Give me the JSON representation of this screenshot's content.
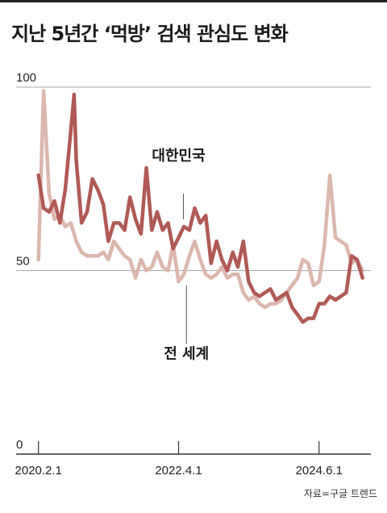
{
  "title": "지난 5년간 ‘먹방’ 검색 관심도 변화",
  "source": "자료=구글 트렌드",
  "chart_data": {
    "type": "line",
    "ylim": [
      0,
      100
    ],
    "y_ticks": [
      {
        "value": 100,
        "label": "100"
      },
      {
        "value": 50,
        "label": "50"
      },
      {
        "value": 0,
        "label": "0"
      }
    ],
    "x_domain": [
      "2019-09-28",
      "2025-03-20"
    ],
    "x_ticks": [
      {
        "date": "2020-02-01",
        "label": "2020.2.1"
      },
      {
        "date": "2022-04-01",
        "label": "2022.4.1"
      },
      {
        "date": "2024-06-01",
        "label": "2024.6.1"
      }
    ],
    "grid": true,
    "legend": "direct labels on the lines",
    "series": [
      {
        "name": "대한민국",
        "color": "#b05a55",
        "labeled_date": "2022-04-01",
        "label_value": 80,
        "points": [
          [
            "2020-02-01",
            76
          ],
          [
            "2020-03-01",
            67
          ],
          [
            "2020-04-01",
            66
          ],
          [
            "2020-05-01",
            69
          ],
          [
            "2020-06-01",
            63
          ],
          [
            "2020-07-01",
            72
          ],
          [
            "2020-08-01",
            88
          ],
          [
            "2020-08-20",
            98
          ],
          [
            "2020-09-01",
            80
          ],
          [
            "2020-10-01",
            63
          ],
          [
            "2020-11-01",
            66
          ],
          [
            "2020-12-01",
            75
          ],
          [
            "2021-01-01",
            72
          ],
          [
            "2021-02-01",
            68
          ],
          [
            "2021-03-01",
            58
          ],
          [
            "2021-04-01",
            63
          ],
          [
            "2021-05-01",
            63
          ],
          [
            "2021-06-01",
            61
          ],
          [
            "2021-07-01",
            70
          ],
          [
            "2021-08-01",
            64
          ],
          [
            "2021-09-01",
            60
          ],
          [
            "2021-10-01",
            78
          ],
          [
            "2021-11-01",
            61
          ],
          [
            "2021-12-01",
            66
          ],
          [
            "2022-01-01",
            61
          ],
          [
            "2022-02-01",
            63
          ],
          [
            "2022-03-01",
            56
          ],
          [
            "2022-04-01",
            59
          ],
          [
            "2022-05-01",
            62
          ],
          [
            "2022-06-01",
            61
          ],
          [
            "2022-07-01",
            67
          ],
          [
            "2022-08-01",
            63
          ],
          [
            "2022-09-01",
            65
          ],
          [
            "2022-10-01",
            52
          ],
          [
            "2022-11-01",
            58
          ],
          [
            "2022-12-01",
            53
          ],
          [
            "2023-01-01",
            50
          ],
          [
            "2023-02-01",
            55
          ],
          [
            "2023-03-01",
            51
          ],
          [
            "2023-04-01",
            58
          ],
          [
            "2023-05-01",
            47
          ],
          [
            "2023-06-01",
            44
          ],
          [
            "2023-07-01",
            43
          ],
          [
            "2023-08-01",
            44
          ],
          [
            "2023-09-01",
            45
          ],
          [
            "2023-10-01",
            42
          ],
          [
            "2023-11-01",
            43
          ],
          [
            "2023-12-01",
            44
          ],
          [
            "2024-01-01",
            40
          ],
          [
            "2024-02-01",
            38
          ],
          [
            "2024-03-01",
            36
          ],
          [
            "2024-04-01",
            37
          ],
          [
            "2024-05-01",
            37
          ],
          [
            "2024-06-01",
            41
          ],
          [
            "2024-07-01",
            41
          ],
          [
            "2024-08-01",
            43
          ],
          [
            "2024-09-01",
            42
          ],
          [
            "2024-10-01",
            43
          ],
          [
            "2024-11-01",
            44
          ],
          [
            "2024-12-01",
            54
          ],
          [
            "2025-01-01",
            53
          ],
          [
            "2025-02-01",
            48
          ]
        ]
      },
      {
        "name": "전 세계",
        "color": "#dcb7ad",
        "labeled_date": "2022-05-15",
        "label_value": 26,
        "points": [
          [
            "2020-02-01",
            53
          ],
          [
            "2020-03-01",
            99
          ],
          [
            "2020-04-01",
            71
          ],
          [
            "2020-05-01",
            64
          ],
          [
            "2020-06-01",
            65
          ],
          [
            "2020-07-01",
            62
          ],
          [
            "2020-08-01",
            63
          ],
          [
            "2020-09-01",
            58
          ],
          [
            "2020-10-01",
            55
          ],
          [
            "2020-11-01",
            54
          ],
          [
            "2020-12-01",
            54
          ],
          [
            "2021-01-01",
            54
          ],
          [
            "2021-02-01",
            55
          ],
          [
            "2021-03-01",
            53
          ],
          [
            "2021-04-01",
            58
          ],
          [
            "2021-05-01",
            56
          ],
          [
            "2021-06-01",
            54
          ],
          [
            "2021-07-01",
            53
          ],
          [
            "2021-08-01",
            48
          ],
          [
            "2021-09-01",
            53
          ],
          [
            "2021-10-01",
            50
          ],
          [
            "2021-11-01",
            51
          ],
          [
            "2021-12-01",
            55
          ],
          [
            "2022-01-01",
            51
          ],
          [
            "2022-02-01",
            50
          ],
          [
            "2022-03-01",
            57
          ],
          [
            "2022-04-01",
            47
          ],
          [
            "2022-05-01",
            49
          ],
          [
            "2022-06-01",
            54
          ],
          [
            "2022-07-01",
            58
          ],
          [
            "2022-08-01",
            53
          ],
          [
            "2022-09-01",
            49
          ],
          [
            "2022-10-01",
            48
          ],
          [
            "2022-11-01",
            49
          ],
          [
            "2022-12-01",
            51
          ],
          [
            "2023-01-01",
            48
          ],
          [
            "2023-02-01",
            49
          ],
          [
            "2023-03-01",
            49
          ],
          [
            "2023-04-01",
            44
          ],
          [
            "2023-05-01",
            42
          ],
          [
            "2023-06-01",
            43
          ],
          [
            "2023-07-01",
            41
          ],
          [
            "2023-08-01",
            40
          ],
          [
            "2023-09-01",
            41
          ],
          [
            "2023-10-01",
            41
          ],
          [
            "2023-11-01",
            42
          ],
          [
            "2023-12-01",
            44
          ],
          [
            "2024-01-01",
            46
          ],
          [
            "2024-02-01",
            48
          ],
          [
            "2024-03-01",
            53
          ],
          [
            "2024-04-01",
            52
          ],
          [
            "2024-05-01",
            46
          ],
          [
            "2024-06-01",
            47
          ],
          [
            "2024-07-01",
            57
          ],
          [
            "2024-08-01",
            76
          ],
          [
            "2024-09-01",
            59
          ],
          [
            "2024-10-01",
            58
          ],
          [
            "2024-11-01",
            57
          ],
          [
            "2024-12-01",
            52
          ],
          [
            "2025-01-01",
            53
          ],
          [
            "2025-02-01",
            50
          ]
        ]
      }
    ]
  }
}
